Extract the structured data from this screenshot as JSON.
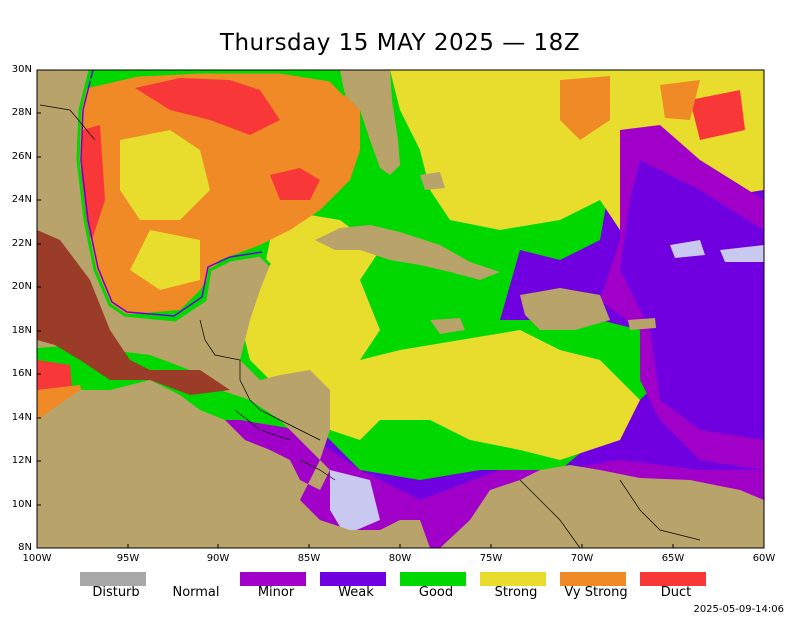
{
  "title": "Thursday 15 MAY 2025 — 18Z",
  "lat_labels": [
    "30N",
    "28N",
    "26N",
    "24N",
    "22N",
    "20N",
    "18N",
    "16N",
    "14N",
    "12N",
    "10N",
    "8N"
  ],
  "lon_labels": [
    "100W",
    "95W",
    "90W",
    "85W",
    "80W",
    "75W",
    "70W",
    "65W",
    "60W"
  ],
  "legend": [
    {
      "label": "Disturb",
      "color": "#a8a8a8"
    },
    {
      "label": "Normal",
      "color": ""
    },
    {
      "label": "Minor",
      "color": "#a000c8"
    },
    {
      "label": "Weak",
      "color": "#7000e0"
    },
    {
      "label": "Good",
      "color": "#00d800"
    },
    {
      "label": "Strong",
      "color": "#e8dc2c"
    },
    {
      "label": "Vy Strong",
      "color": "#f08a26"
    },
    {
      "label": "Duct",
      "color": "#f83838"
    }
  ],
  "timestamp": "2025-05-09-14:06",
  "colors": {
    "land": "#b8a46a",
    "mountain": "#9a3c28",
    "good": "#00d800",
    "strong": "#e8dc2c",
    "vystrong": "#f08a26",
    "duct": "#f83838",
    "minor": "#a000c8",
    "weak": "#7000e0",
    "lavender": "#c8c8f0"
  }
}
